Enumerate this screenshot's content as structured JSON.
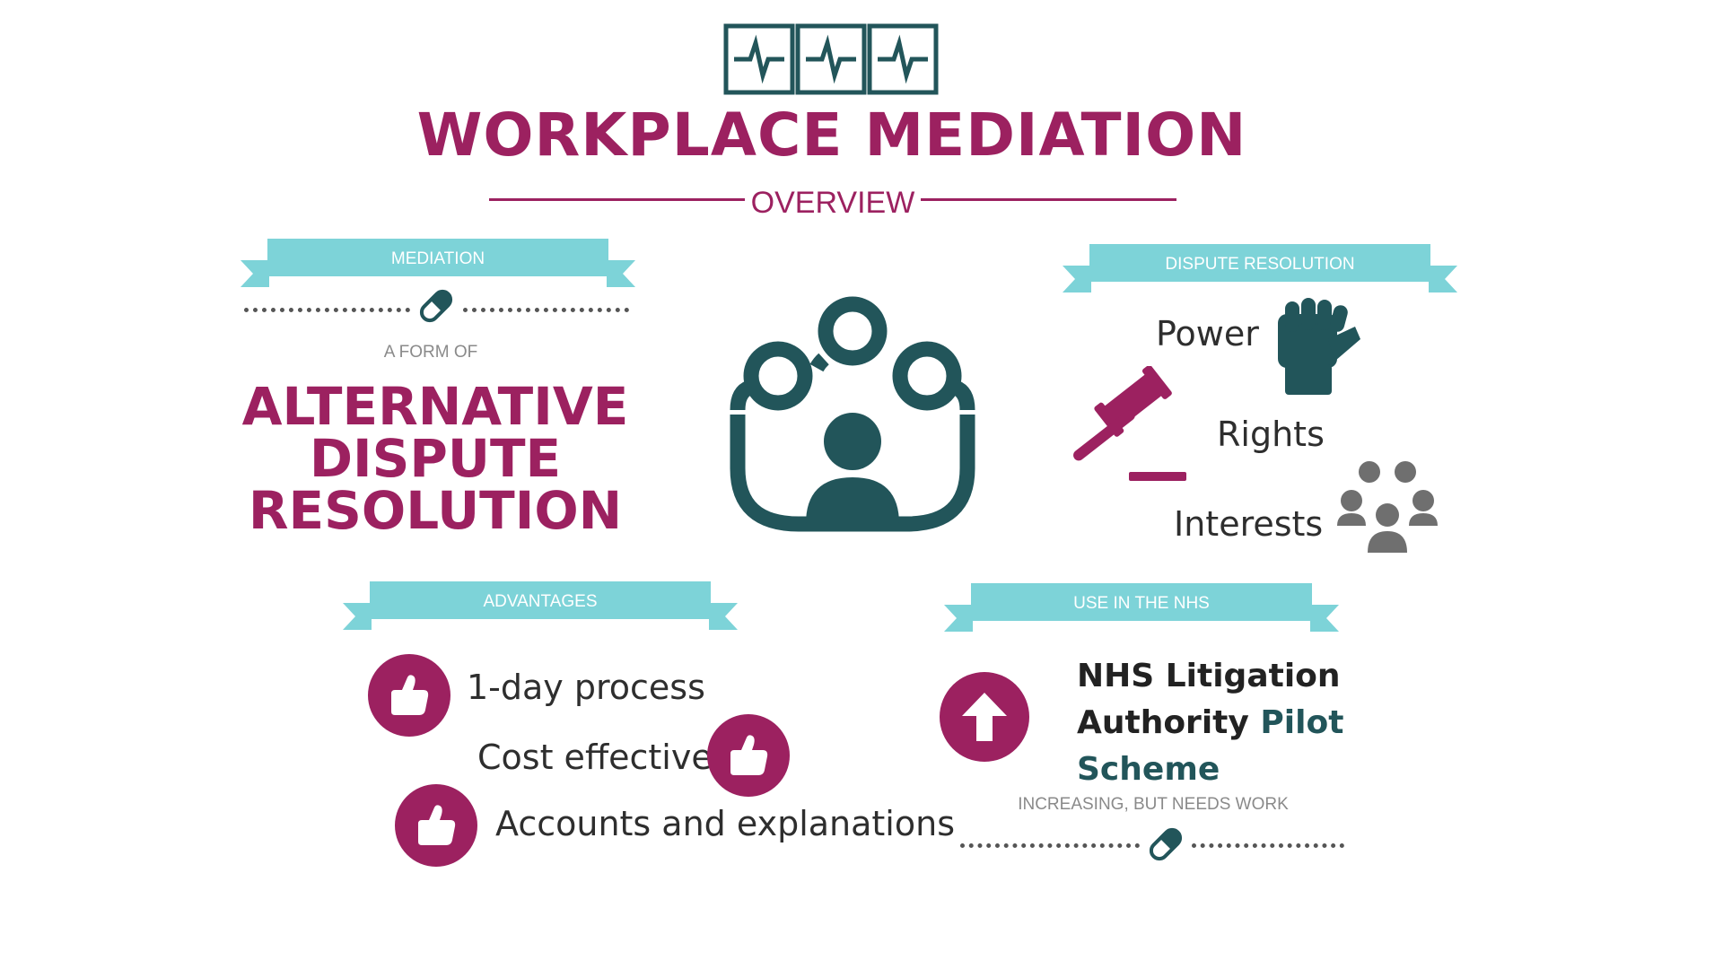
{
  "header": {
    "title": "WORKPLACE MEDIATION",
    "subtitle": "OVERVIEW",
    "icon": "heartbeat-monitor-icon"
  },
  "colors": {
    "primary": "#9c2160",
    "teal": "#22555a",
    "ribbon": "#7dd3d8",
    "grey": "#777777"
  },
  "mediation": {
    "ribbon_label": "MEDIATION",
    "form_of": "A FORM OF",
    "adr_lines": [
      "ALTERNATIVE",
      "DISPUTE",
      "RESOLUTION"
    ],
    "divider_icon": "pill-icon"
  },
  "center": {
    "icon": "group-meeting-icon"
  },
  "dispute_resolution": {
    "ribbon_label": "DISPUTE RESOLUTION",
    "items": [
      {
        "label": "Power",
        "icon": "fist-icon"
      },
      {
        "label": "Rights",
        "icon": "gavel-icon"
      },
      {
        "label": "Interests",
        "icon": "people-group-icon"
      }
    ]
  },
  "advantages": {
    "ribbon_label": "ADVANTAGES",
    "items": [
      {
        "label": "1-day process",
        "icon": "thumbs-up-icon"
      },
      {
        "label": "Cost effective",
        "icon": "thumbs-up-icon"
      },
      {
        "label": "Accounts and explanations",
        "icon": "thumbs-up-icon"
      }
    ]
  },
  "nhs": {
    "ribbon_label": "USE IN THE NHS",
    "title_line1": "NHS Litigation",
    "title_line2a": "Authority",
    "title_line2b": "Pilot",
    "title_line3": "Scheme",
    "subtitle": "INCREASING, BUT NEEDS WORK",
    "icon": "arrow-up-icon",
    "divider_icon": "pill-icon"
  }
}
